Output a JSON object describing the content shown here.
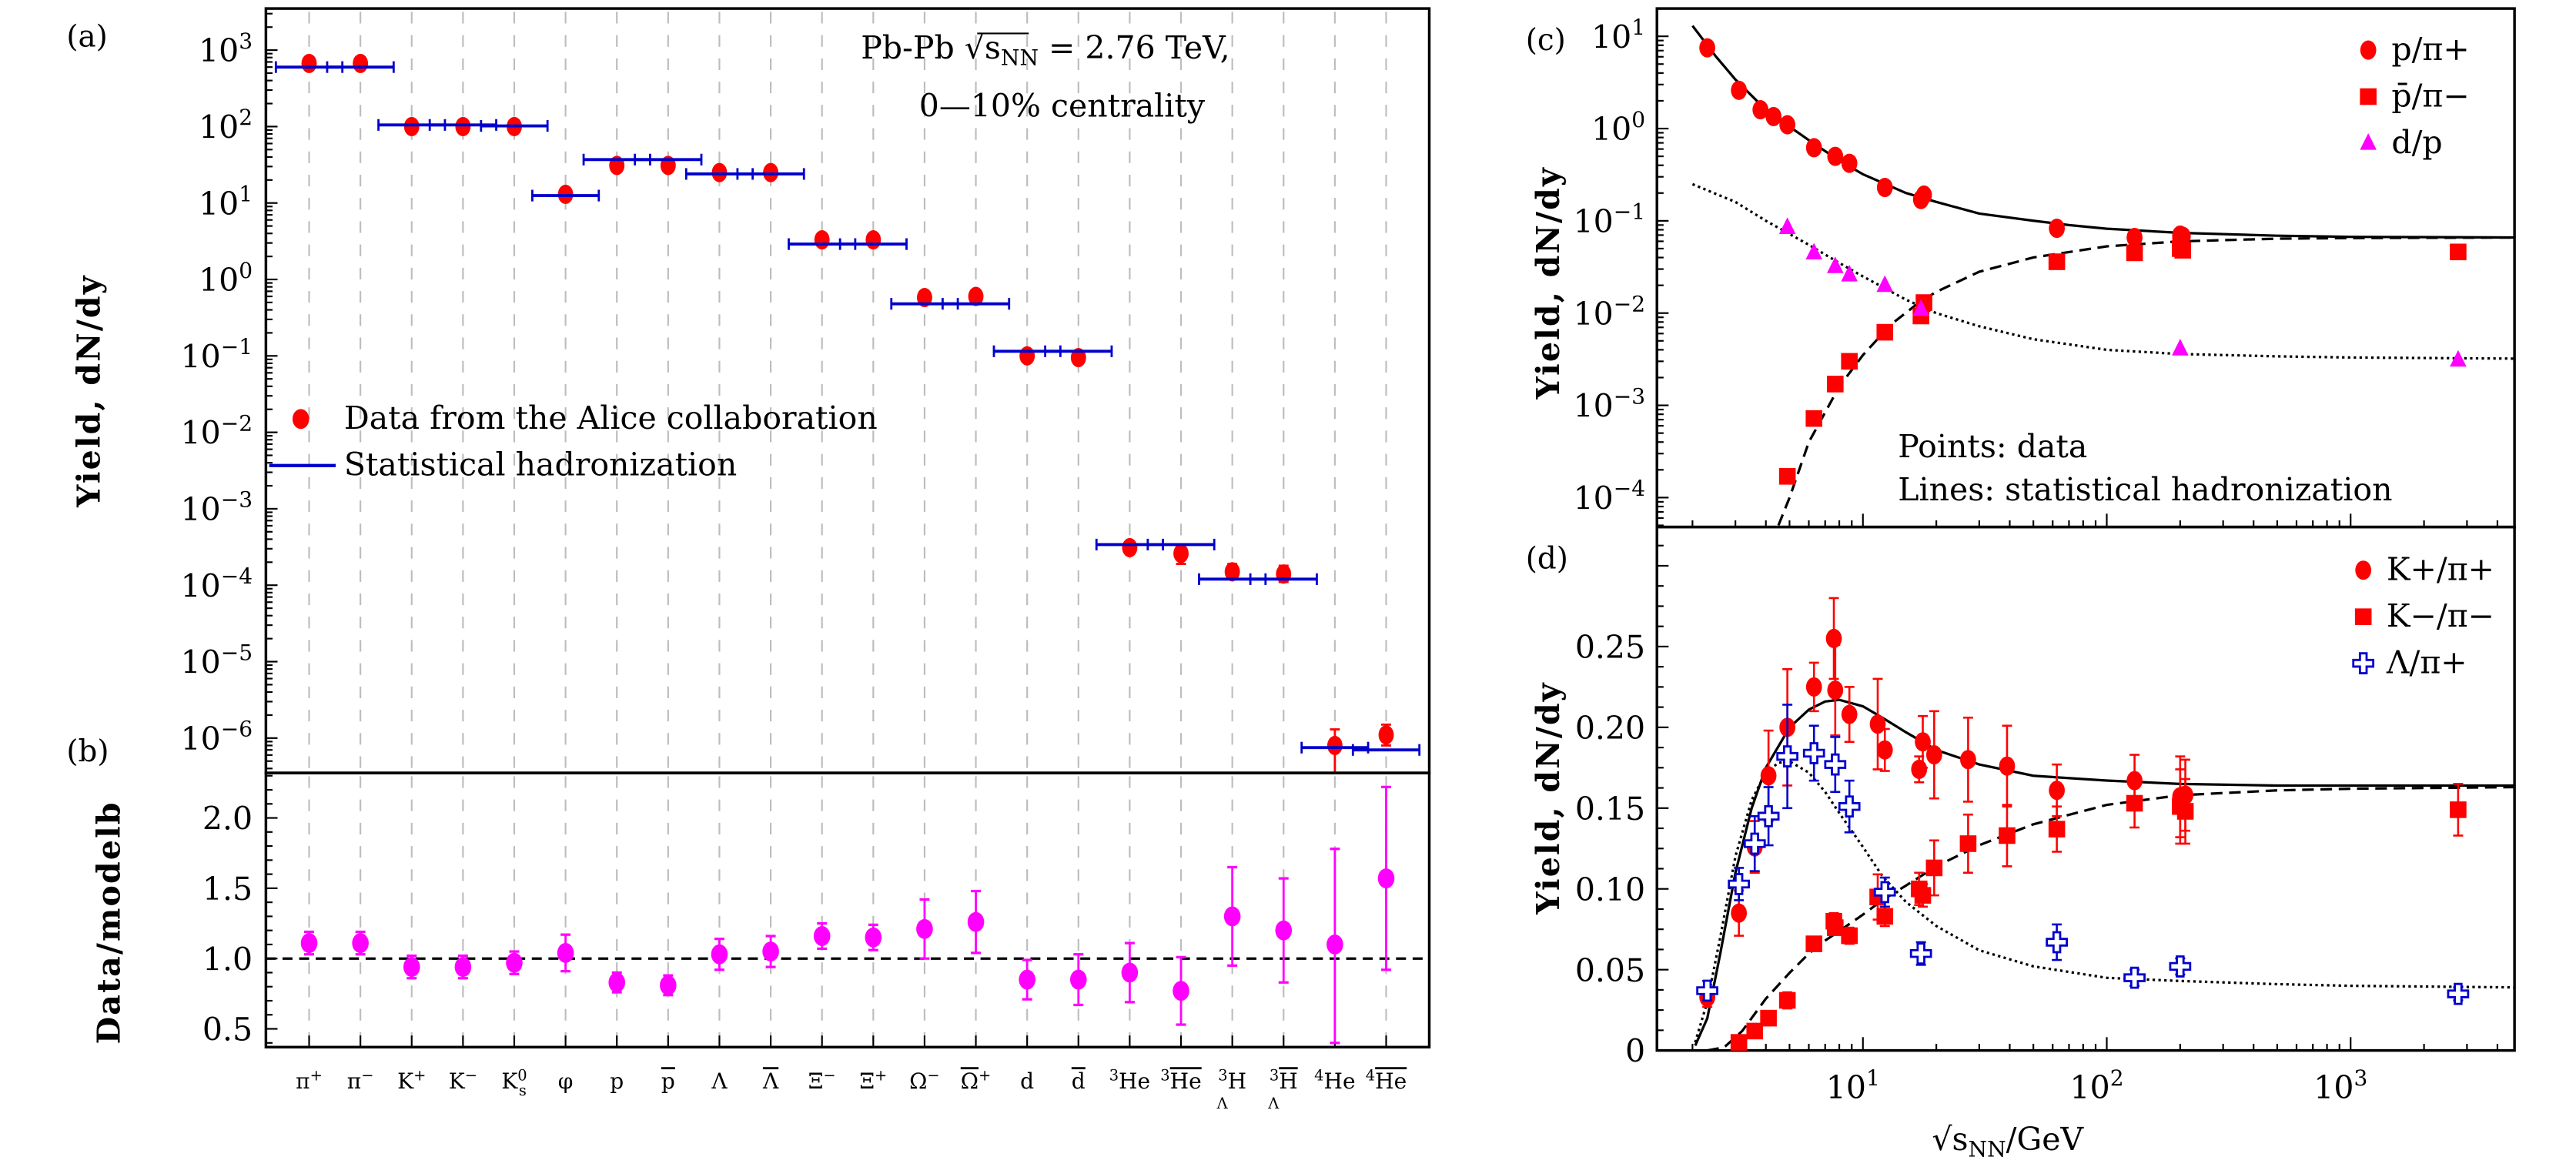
{
  "figure": {
    "panel_labels": {
      "a": "(a)",
      "b": "(b)",
      "c": "(c)",
      "d": "(d)"
    }
  },
  "chart_data": [
    {
      "id": "a",
      "type": "scatter",
      "title": "Pb-Pb √sNN = 2.76 TeV, 0—10% centrality",
      "annotation_line1": "Pb-Pb √s",
      "annotation_sub": "NN",
      "annotation_line1_rest": " = 2.76 TeV,",
      "annotation_line2": "0—10% centrality",
      "ylabel": "Yield, dN/dy",
      "yscale": "log",
      "ylim": [
        3.5e-07,
        3500
      ],
      "yticks": [
        {
          "v": 1000,
          "label": "10^3"
        },
        {
          "v": 100,
          "label": "10^2"
        },
        {
          "v": 10,
          "label": "10^1"
        },
        {
          "v": 1,
          "label": "10^0"
        },
        {
          "v": 0.1,
          "label": "10^-1"
        },
        {
          "v": 0.01,
          "label": "10^-2"
        },
        {
          "v": 0.001,
          "label": "10^-3"
        },
        {
          "v": 0.0001,
          "label": "10^-4"
        },
        {
          "v": 1e-05,
          "label": "10^-5"
        },
        {
          "v": 1e-06,
          "label": "10^-6"
        }
      ],
      "grid": "vertical-dashed",
      "legend": {
        "position": "middle-left",
        "entries": [
          {
            "label": "Data from the Alice collaboration",
            "marker": "circle",
            "color": "#ff0000"
          },
          {
            "label": "Statistical hadronization",
            "marker": "line",
            "color": "#0000cc"
          }
        ]
      },
      "categories": [
        "π+",
        "π−",
        "K+",
        "K−",
        "K0s",
        "φ",
        "p",
        "p̄",
        "Λ",
        "Λ̄",
        "Ξ−",
        "Ξ+",
        "Ω−",
        "Ω̄+",
        "d",
        "d̄",
        "3He",
        "3He̅",
        "3ΛH",
        "3Λ̄H̄",
        "4He",
        "4He̅"
      ],
      "series": [
        {
          "name": "Data from the Alice collaboration",
          "color": "#ff0000",
          "values": [
            670,
            670,
            100,
            100,
            100,
            13,
            31,
            31,
            25,
            25,
            3.3,
            3.3,
            0.58,
            0.6,
            0.1,
            0.095,
            0.00031,
            0.00026,
            0.00015,
            0.00014,
            8e-07,
            1.1e-06
          ],
          "err_up": [
            0,
            0,
            0,
            0,
            0,
            0,
            0,
            0,
            0,
            0,
            0,
            0,
            0,
            0,
            0,
            0,
            5e-05,
            7e-05,
            4e-05,
            4e-05,
            5e-07,
            4e-07
          ],
          "err_dn": [
            0,
            0,
            0,
            0,
            0,
            0,
            0,
            0,
            0,
            0,
            0,
            0,
            0,
            0,
            0,
            0,
            4e-05,
            7e-05,
            3e-05,
            3e-05,
            5e-07,
            3e-07
          ]
        },
        {
          "name": "Statistical hadronization",
          "color": "#0000cc",
          "values": [
            600,
            600,
            105,
            105,
            102,
            12.5,
            37,
            37,
            24,
            24,
            2.9,
            2.9,
            0.48,
            0.48,
            0.115,
            0.115,
            0.00034,
            0.00034,
            0.00012,
            0.00012,
            7.5e-07,
            7e-07
          ]
        }
      ]
    },
    {
      "id": "b",
      "type": "scatter",
      "ylabel": "Data/modelb",
      "ylim": [
        0.37,
        2.32
      ],
      "yticks": [
        0.5,
        1.0,
        1.5,
        2.0
      ],
      "ytick_labels": [
        "0.5",
        "1.0",
        "1.5",
        "2.0"
      ],
      "reference_line": 1.0,
      "categories_labels": [
        {
          "main": "π",
          "sup": "+"
        },
        {
          "main": "π",
          "sup": "−"
        },
        {
          "main": "K",
          "sup": "+"
        },
        {
          "main": "K",
          "sup": "−"
        },
        {
          "main": "K",
          "sup": "0",
          "sub": "s"
        },
        {
          "main": "φ"
        },
        {
          "main": "p"
        },
        {
          "main": "p",
          "bar": true
        },
        {
          "main": "Λ"
        },
        {
          "main": "Λ",
          "bar": true
        },
        {
          "main": "Ξ",
          "sup": "−"
        },
        {
          "main": "Ξ",
          "sup": "+"
        },
        {
          "main": "Ω",
          "sup": "−"
        },
        {
          "main": "Ω",
          "sup": "+",
          "bar": true
        },
        {
          "main": "d"
        },
        {
          "main": "d",
          "bar": true
        },
        {
          "pre": "3",
          "main": "He"
        },
        {
          "pre": "3",
          "main": "He",
          "bar": true
        },
        {
          "pre": "3",
          "presub": "Λ",
          "main": "H"
        },
        {
          "pre": "3",
          "presub": "Λ",
          "main": "H",
          "bar": true
        },
        {
          "pre": "4",
          "main": "He"
        },
        {
          "pre": "4",
          "main": "He",
          "bar": true
        }
      ],
      "series": [
        {
          "name": "Data/model",
          "color": "#ff00ff",
          "values": [
            1.11,
            1.11,
            0.94,
            0.94,
            0.97,
            1.04,
            0.83,
            0.81,
            1.03,
            1.05,
            1.16,
            1.15,
            1.21,
            1.26,
            0.85,
            0.85,
            0.9,
            0.77,
            1.3,
            1.2,
            1.1,
            1.57
          ],
          "err_up": [
            0.08,
            0.08,
            0.08,
            0.08,
            0.08,
            0.13,
            0.07,
            0.07,
            0.11,
            0.11,
            0.09,
            0.09,
            0.21,
            0.22,
            0.14,
            0.18,
            0.21,
            0.24,
            0.35,
            0.37,
            0.68,
            0.65
          ],
          "err_dn": [
            0.08,
            0.08,
            0.08,
            0.08,
            0.08,
            0.13,
            0.07,
            0.07,
            0.11,
            0.11,
            0.09,
            0.09,
            0.21,
            0.22,
            0.14,
            0.18,
            0.21,
            0.24,
            0.35,
            0.37,
            0.7,
            0.65
          ]
        }
      ]
    },
    {
      "id": "c",
      "type": "scatter",
      "ylabel": "Yield, dN/dy",
      "yscale": "log",
      "xscale": "log",
      "ylim": [
        4.8e-05,
        20
      ],
      "xlim": [
        1.43,
        4700
      ],
      "yticks": [
        {
          "v": 10,
          "label": "10^1"
        },
        {
          "v": 1,
          "label": "10^0"
        },
        {
          "v": 0.1,
          "label": "10^-1"
        },
        {
          "v": 0.01,
          "label": "10^-2"
        },
        {
          "v": 0.001,
          "label": "10^-3"
        },
        {
          "v": 0.0001,
          "label": "10^-4"
        }
      ],
      "annotation": [
        "Points: data",
        "Lines: statistical hadronization"
      ],
      "legend": {
        "position": "top-right",
        "entries": [
          {
            "label": "p/π+",
            "marker": "circle",
            "color": "#ff0000"
          },
          {
            "label": "p̄/π−",
            "marker": "square",
            "color": "#ff0000"
          },
          {
            "label": "d/p",
            "marker": "triangle",
            "color": "#ff00ff"
          }
        ]
      },
      "series": [
        {
          "name": "p/π+",
          "marker": "circle",
          "color": "#ff0000",
          "x": [
            2.3,
            3.1,
            3.8,
            4.3,
            4.9,
            6.3,
            7.7,
            8.8,
            12.3,
            17.3,
            17.8,
            62.4,
            130,
            200,
            200,
            205
          ],
          "y": [
            7.5,
            2.6,
            1.6,
            1.35,
            1.1,
            0.62,
            0.5,
            0.42,
            0.23,
            0.17,
            0.19,
            0.083,
            0.066,
            0.07,
            0.065,
            0.068
          ]
        },
        {
          "name": "p̄/π−",
          "marker": "square",
          "color": "#ff0000",
          "x": [
            4.9,
            6.3,
            7.7,
            8.8,
            12.3,
            17.3,
            17.8,
            62.4,
            130,
            200,
            205,
            2760
          ],
          "y": [
            0.00017,
            0.00072,
            0.0017,
            0.003,
            0.0062,
            0.0093,
            0.013,
            0.036,
            0.045,
            0.05,
            0.048,
            0.046
          ]
        },
        {
          "name": "d/p",
          "marker": "triangle",
          "color": "#ff00ff",
          "x": [
            4.9,
            6.3,
            7.7,
            8.8,
            12.3,
            17.3,
            200,
            2760
          ],
          "y": [
            0.085,
            0.045,
            0.032,
            0.026,
            0.02,
            0.011,
            0.0041,
            0.0031
          ]
        },
        {
          "name": "model p/π+",
          "style": "solid",
          "color": "#000000",
          "x": [
            2.0,
            2.5,
            3,
            4,
            5,
            6,
            8,
            10,
            15,
            20,
            30,
            50,
            70,
            100,
            200,
            500,
            1000,
            5000
          ],
          "y": [
            13,
            6.0,
            3.4,
            1.6,
            1.05,
            0.75,
            0.45,
            0.32,
            0.2,
            0.16,
            0.12,
            0.1,
            0.09,
            0.082,
            0.074,
            0.069,
            0.067,
            0.066
          ]
        },
        {
          "name": "model p̄/π−",
          "style": "dashed",
          "color": "#000000",
          "x": [
            4.5,
            5,
            6,
            8,
            10,
            13,
            17,
            20,
            30,
            50,
            100,
            200,
            500,
            1000,
            5000
          ],
          "y": [
            5e-05,
            0.0001,
            0.0004,
            0.0016,
            0.0035,
            0.0075,
            0.013,
            0.017,
            0.028,
            0.04,
            0.053,
            0.06,
            0.064,
            0.065,
            0.066
          ]
        },
        {
          "name": "model d/p",
          "style": "dotted",
          "color": "#000000",
          "x": [
            2.0,
            3,
            4,
            5,
            6,
            8,
            10,
            15,
            20,
            30,
            50,
            100,
            200,
            500,
            1000,
            5000
          ],
          "y": [
            0.25,
            0.16,
            0.1,
            0.072,
            0.055,
            0.035,
            0.025,
            0.014,
            0.01,
            0.0072,
            0.0052,
            0.004,
            0.0036,
            0.0034,
            0.0033,
            0.0032
          ]
        }
      ]
    },
    {
      "id": "d",
      "type": "scatter",
      "ylabel": "Yield, dN/dy",
      "xlabel": "√sNN/GeV",
      "xlabel_main": "√s",
      "xlabel_sub": "NN",
      "xlabel_rest": "/GeV",
      "xscale": "log",
      "xlim": [
        1.43,
        4700
      ],
      "ylim": [
        0,
        0.324
      ],
      "yticks": [
        0,
        0.05,
        0.1,
        0.15,
        0.2,
        0.25
      ],
      "ytick_labels": [
        "0",
        "0.05",
        "0.10",
        "0.15",
        "0.20",
        "0.25"
      ],
      "xticks": [
        {
          "v": 10,
          "label": "10^1"
        },
        {
          "v": 100,
          "label": "10^2"
        },
        {
          "v": 1000,
          "label": "10^3"
        }
      ],
      "legend": {
        "position": "top-right",
        "entries": [
          {
            "label": "K+/π+",
            "marker": "circle",
            "color": "#ff0000"
          },
          {
            "label": "K−/π−",
            "marker": "square",
            "color": "#ff0000"
          },
          {
            "label": "Λ/π+",
            "marker": "open-cross",
            "color": "#0000cc"
          }
        ]
      },
      "series": [
        {
          "name": "K+/π+",
          "marker": "circle",
          "color": "#ff0000",
          "x": [
            2.3,
            3.1,
            3.6,
            4.1,
            4.9,
            6.3,
            7.6,
            7.7,
            8.8,
            11.5,
            12.3,
            17.0,
            17.6,
            19.6,
            27,
            39,
            62.4,
            130,
            200,
            210
          ],
          "y": [
            0.033,
            0.085,
            0.126,
            0.17,
            0.2,
            0.225,
            0.255,
            0.223,
            0.208,
            0.202,
            0.186,
            0.174,
            0.191,
            0.183,
            0.18,
            0.176,
            0.161,
            0.167,
            0.157,
            0.158
          ],
          "err": [
            0.006,
            0.014,
            0.016,
            0.028,
            0.036,
            0.015,
            0.025,
            0.028,
            0.017,
            0.028,
            0.013,
            0.008,
            0.016,
            0.027,
            0.026,
            0.025,
            0.016,
            0.016,
            0.025,
            0.022
          ]
        },
        {
          "name": "K−/π−",
          "marker": "square",
          "color": "#ff0000",
          "x": [
            3.1,
            3.6,
            4.1,
            4.9,
            6.3,
            7.6,
            7.7,
            8.8,
            11.5,
            12.3,
            17.0,
            17.6,
            19.6,
            27,
            39,
            62.4,
            130,
            200,
            210,
            2760
          ],
          "y": [
            0.005,
            0.012,
            0.02,
            0.031,
            0.066,
            0.08,
            0.076,
            0.071,
            0.095,
            0.083,
            0.1,
            0.096,
            0.113,
            0.128,
            0.133,
            0.137,
            0.153,
            0.151,
            0.148,
            0.149
          ],
          "err": [
            0.003,
            0.004,
            0.004,
            0.005,
            0.004,
            0.005,
            0.004,
            0.005,
            0.014,
            0.006,
            0.01,
            0.007,
            0.017,
            0.018,
            0.019,
            0.014,
            0.015,
            0.023,
            0.02,
            0.016
          ]
        },
        {
          "name": "Λ/π+",
          "marker": "open-cross",
          "color": "#0000cc",
          "x": [
            2.3,
            3.1,
            3.6,
            4.1,
            4.9,
            6.3,
            7.7,
            8.8,
            12.3,
            17.3,
            62.4,
            130,
            200,
            2760
          ],
          "y": [
            0.037,
            0.103,
            0.128,
            0.145,
            0.182,
            0.184,
            0.177,
            0.151,
            0.098,
            0.06,
            0.067,
            0.045,
            0.052,
            0.035
          ],
          "err": [
            0.006,
            0.01,
            0.017,
            0.018,
            0.032,
            0.017,
            0.017,
            0.016,
            0.009,
            0.007,
            0.011,
            0.005,
            0.005,
            0.004
          ]
        },
        {
          "name": "model K+/π+",
          "style": "solid",
          "color": "#000000",
          "x": [
            2.05,
            2.3,
            2.6,
            3,
            3.5,
            4,
            5,
            6,
            7,
            8,
            10,
            12,
            15,
            20,
            30,
            50,
            100,
            200,
            500,
            1000,
            5000
          ],
          "y": [
            0.003,
            0.02,
            0.06,
            0.11,
            0.15,
            0.175,
            0.2,
            0.211,
            0.216,
            0.217,
            0.213,
            0.206,
            0.197,
            0.186,
            0.177,
            0.17,
            0.167,
            0.165,
            0.164,
            0.164,
            0.164
          ]
        },
        {
          "name": "model K−/π−",
          "style": "dashed",
          "color": "#000000",
          "x": [
            2.3,
            2.7,
            3.2,
            4,
            5,
            6,
            7,
            8,
            10,
            12,
            15,
            20,
            30,
            50,
            100,
            200,
            500,
            1000,
            5000
          ],
          "y": [
            0.0,
            0.002,
            0.012,
            0.032,
            0.048,
            0.06,
            0.068,
            0.074,
            0.084,
            0.093,
            0.102,
            0.114,
            0.127,
            0.14,
            0.152,
            0.158,
            0.161,
            0.162,
            0.163
          ]
        },
        {
          "name": "model Λ/π+",
          "style": "dotted",
          "color": "#000000",
          "x": [
            2.05,
            2.3,
            2.6,
            3,
            3.5,
            4,
            4.5,
            5,
            6,
            7,
            8,
            10,
            12,
            15,
            20,
            30,
            50,
            100,
            200,
            500,
            1000,
            5000
          ],
          "y": [
            0.005,
            0.03,
            0.07,
            0.12,
            0.155,
            0.172,
            0.178,
            0.179,
            0.172,
            0.16,
            0.147,
            0.126,
            0.108,
            0.092,
            0.077,
            0.062,
            0.052,
            0.045,
            0.043,
            0.041,
            0.04,
            0.039
          ]
        }
      ]
    }
  ]
}
